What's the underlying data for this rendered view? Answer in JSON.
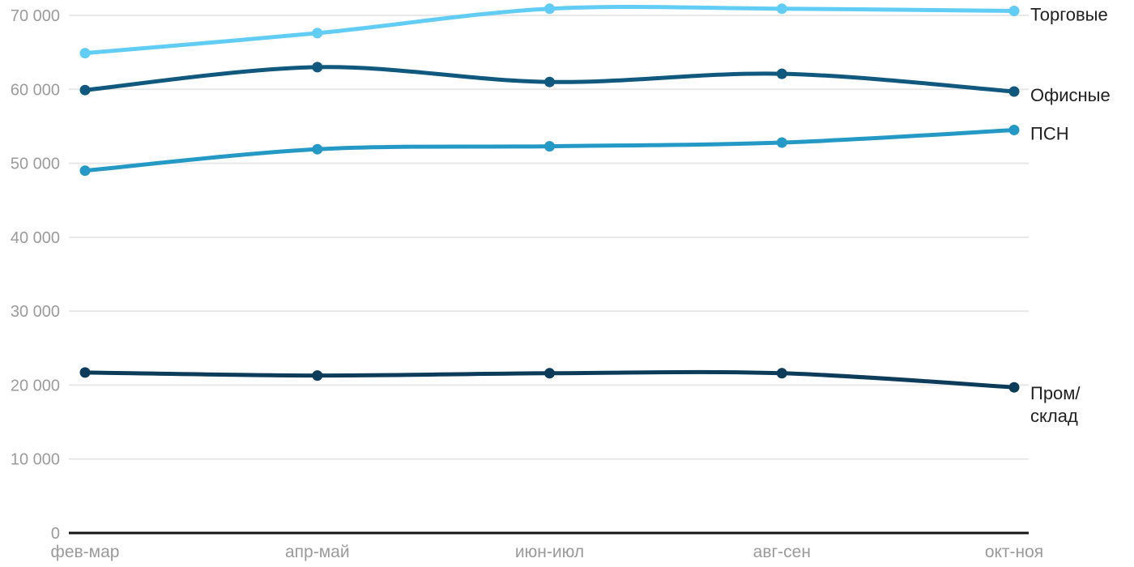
{
  "chart_data": {
    "type": "line",
    "title": "",
    "categories": [
      "фев-мар",
      "апр-май",
      "июн-июл",
      "авг-сен",
      "окт-ноя"
    ],
    "series": [
      {
        "name": "Торговые",
        "label_lines": [
          "Торговые"
        ],
        "color": "#62CDF4",
        "values": [
          64900,
          67600,
          70900,
          70900,
          70600
        ]
      },
      {
        "name": "Офисные",
        "label_lines": [
          "Офисные"
        ],
        "color": "#10587D",
        "values": [
          59900,
          63000,
          61000,
          62100,
          59700
        ]
      },
      {
        "name": "ПСН",
        "label_lines": [
          "ПСН"
        ],
        "color": "#2599C5",
        "values": [
          49000,
          51900,
          52300,
          52800,
          54500
        ]
      },
      {
        "name": "Пром/склад",
        "label_lines": [
          "Пром/",
          "склад"
        ],
        "color": "#0D3C5B",
        "values": [
          21700,
          21300,
          21600,
          21600,
          19700
        ]
      }
    ],
    "y_axis": {
      "min": 0,
      "max": 70000,
      "tick_step": 10000,
      "tick_values": [
        0,
        10000,
        20000,
        30000,
        40000,
        50000,
        60000,
        70000
      ],
      "tick_labels": [
        "0",
        "10 000",
        "20 000",
        "30 000",
        "40 000",
        "50 000",
        "60 000",
        "70 000"
      ]
    },
    "x_axis": {
      "labels": [
        "фев-мар",
        "апр-май",
        "июн-июл",
        "авг-сен",
        "окт-ноя"
      ]
    },
    "grid": "horizontal",
    "legend_position": "right-inline"
  },
  "style": {
    "background_color": "#FFFFFF",
    "grid_color": "#E8E8E8",
    "axis_line_color": "#141414",
    "tick_label_color": "#9B9B9B",
    "series_label_color": "#212121"
  }
}
